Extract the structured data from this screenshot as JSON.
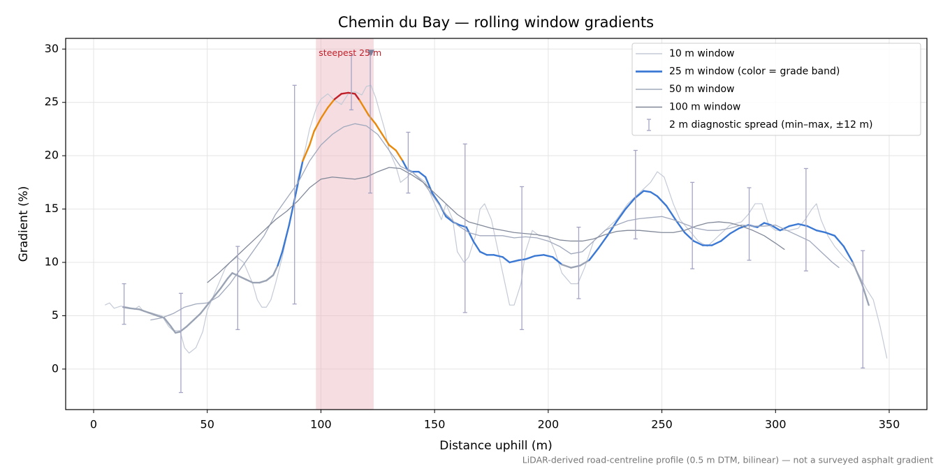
{
  "chart_data": {
    "type": "line",
    "title": "Chemin du Bay — rolling window gradients",
    "x_label": "Distance uphill (m)",
    "y_label": "Gradient (%)",
    "footnote": "LiDAR-derived road-centreline profile (0.5 m DTM, bilinear) — not a surveyed asphalt gradient",
    "xlim": [
      -12.3,
      366.6
    ],
    "ylim": [
      -3.8,
      31
    ],
    "xticks": [
      0,
      50,
      100,
      150,
      200,
      250,
      300,
      350
    ],
    "yticks": [
      0,
      5,
      10,
      15,
      20,
      25,
      30
    ],
    "grid": true,
    "legend": "upper right",
    "highlight": {
      "x": [
        97.8,
        123.2
      ],
      "color": "#e8b4bc"
    },
    "annotation": {
      "text": "steepest 25 m",
      "x": 122,
      "y": 29.6,
      "color": "#c0202a",
      "marker_color": "#7a7f9a"
    },
    "series": [
      {
        "name": "10 m window",
        "color": "#c3cad6",
        "width": 1.2,
        "x": [
          5,
          7,
          9,
          12,
          15,
          18,
          20,
          22,
          25,
          28,
          30,
          33,
          35,
          38,
          40,
          42,
          45,
          48,
          50,
          53,
          56,
          58,
          60,
          63,
          66,
          68,
          70,
          72,
          74,
          76,
          78,
          80,
          83,
          86,
          88,
          90,
          93,
          95,
          98,
          100,
          103,
          106,
          109,
          112,
          115,
          118,
          120,
          122,
          124,
          126,
          128,
          130,
          133,
          135,
          138,
          140,
          143,
          146,
          150,
          153,
          155,
          158,
          160,
          163,
          165,
          168,
          170,
          172,
          175,
          178,
          180,
          183,
          185,
          188,
          190,
          193,
          196,
          200,
          203,
          206,
          210,
          213,
          216,
          220,
          225,
          230,
          235,
          240,
          245,
          248,
          251,
          255,
          258,
          262,
          266,
          270,
          275,
          280,
          285,
          288,
          291,
          294,
          297,
          300,
          303,
          306,
          310,
          313,
          316,
          318,
          320,
          323,
          326,
          330,
          335,
          340,
          343,
          346,
          349
        ],
        "values": [
          6.0,
          6.2,
          5.7,
          5.9,
          5.8,
          5.6,
          5.9,
          5.4,
          5.3,
          5.1,
          5.0,
          4.0,
          3.6,
          3.6,
          2.0,
          1.5,
          2.0,
          3.5,
          5.5,
          7.0,
          8.5,
          9.5,
          10.0,
          10.5,
          10.0,
          9.0,
          8.0,
          6.5,
          5.8,
          5.8,
          6.5,
          8.0,
          10.5,
          13.5,
          15.5,
          18.0,
          20.5,
          22.5,
          24.5,
          25.3,
          25.8,
          25.2,
          24.8,
          25.8,
          26.0,
          25.7,
          26.5,
          26.6,
          25.5,
          24.0,
          22.5,
          20.5,
          19.0,
          17.5,
          18.0,
          18.5,
          18.0,
          17.5,
          15.5,
          14.0,
          15.5,
          14.0,
          11.0,
          10.0,
          10.5,
          12.5,
          15.0,
          15.5,
          14.0,
          11.0,
          9.0,
          6.0,
          6.0,
          8.0,
          11.0,
          13.0,
          12.5,
          12.5,
          11.0,
          9.0,
          8.0,
          8.0,
          9.5,
          12.0,
          13.0,
          14.0,
          15.5,
          16.5,
          17.5,
          18.5,
          18.0,
          15.5,
          14.0,
          13.0,
          12.0,
          11.5,
          12.5,
          13.5,
          13.8,
          14.5,
          15.5,
          15.5,
          13.5,
          13.0,
          13.0,
          13.0,
          13.2,
          14.0,
          15.0,
          15.5,
          14.0,
          12.5,
          11.5,
          10.5,
          9.5,
          7.5,
          6.5,
          4.0,
          1.0
        ]
      },
      {
        "name": "25 m window (color = grade band)",
        "color": "#3a78d4",
        "width": 2.4,
        "grade_bands": {
          "thresholds": [
            10,
            20,
            25
          ],
          "colors": [
            "#9aa3b4",
            "#3a78d4",
            "#e8890c",
            "#c0202a"
          ]
        },
        "x": [
          13,
          16,
          20,
          24,
          28,
          31,
          34,
          36,
          38,
          41,
          44,
          47,
          50,
          53,
          56,
          59,
          61,
          64,
          67,
          70,
          73,
          76,
          79,
          81,
          83,
          86,
          89,
          92,
          95,
          97,
          100,
          103,
          106,
          109,
          112,
          115,
          117,
          119,
          121,
          124,
          127,
          130,
          133,
          136,
          138,
          140,
          143,
          146,
          149,
          152,
          155,
          158,
          161,
          164,
          167,
          170,
          173,
          176,
          180,
          183,
          187,
          190,
          194,
          198,
          202,
          206,
          210,
          214,
          218,
          222,
          226,
          230,
          234,
          238,
          242,
          245,
          248,
          252,
          256,
          260,
          264,
          268,
          272,
          276,
          280,
          284,
          288,
          292,
          295,
          298,
          302,
          306,
          310,
          314,
          318,
          322,
          326,
          330,
          334,
          338,
          341
        ],
        "values": [
          5.8,
          5.7,
          5.6,
          5.3,
          5.0,
          4.8,
          4.0,
          3.4,
          3.5,
          4.0,
          4.6,
          5.2,
          6.0,
          6.8,
          7.6,
          8.5,
          9.0,
          8.7,
          8.4,
          8.1,
          8.1,
          8.3,
          8.8,
          9.7,
          11.0,
          13.5,
          16.5,
          19.5,
          21.0,
          22.3,
          23.5,
          24.5,
          25.3,
          25.8,
          25.9,
          25.8,
          25.2,
          24.5,
          23.8,
          23.0,
          22.0,
          21.0,
          20.5,
          19.5,
          18.7,
          18.5,
          18.5,
          18.0,
          16.5,
          15.5,
          14.3,
          13.8,
          13.5,
          13.3,
          12.0,
          11.0,
          10.7,
          10.7,
          10.5,
          10.0,
          10.2,
          10.3,
          10.6,
          10.7,
          10.5,
          9.8,
          9.5,
          9.7,
          10.2,
          11.3,
          12.5,
          13.8,
          15.0,
          16.0,
          16.7,
          16.6,
          16.2,
          15.3,
          14.0,
          12.8,
          12.0,
          11.6,
          11.6,
          12.0,
          12.7,
          13.2,
          13.5,
          13.3,
          13.7,
          13.5,
          13.0,
          13.4,
          13.6,
          13.4,
          13.0,
          12.8,
          12.5,
          11.5,
          10.0,
          8.0,
          6.0
        ]
      },
      {
        "name": "50 m window",
        "color": "#a0a8bc",
        "width": 1.3,
        "x": [
          25,
          30,
          35,
          40,
          45,
          50,
          55,
          60,
          65,
          70,
          75,
          80,
          85,
          90,
          95,
          100,
          105,
          110,
          115,
          120,
          125,
          130,
          135,
          140,
          145,
          150,
          155,
          160,
          165,
          170,
          175,
          180,
          185,
          190,
          195,
          200,
          205,
          210,
          215,
          220,
          225,
          230,
          235,
          240,
          245,
          250,
          255,
          260,
          265,
          270,
          275,
          280,
          285,
          290,
          295,
          300,
          305,
          310,
          315,
          320,
          325,
          328
        ],
        "values": [
          4.6,
          4.8,
          5.2,
          5.8,
          6.1,
          6.2,
          6.8,
          8.0,
          9.5,
          11.0,
          12.5,
          14.5,
          16.0,
          17.5,
          19.5,
          21.0,
          22.0,
          22.7,
          23.0,
          22.8,
          22.0,
          20.5,
          19.0,
          18.5,
          17.5,
          16.0,
          14.5,
          13.5,
          12.8,
          12.5,
          12.5,
          12.5,
          12.3,
          12.4,
          12.3,
          12.0,
          11.5,
          10.8,
          11.0,
          12.0,
          13.0,
          13.5,
          13.9,
          14.1,
          14.2,
          14.3,
          14.0,
          13.6,
          13.2,
          13.0,
          13.0,
          13.2,
          13.5,
          13.4,
          13.4,
          13.5,
          13.0,
          12.5,
          12.0,
          11.0,
          10.0,
          9.5
        ]
      },
      {
        "name": "100 m window",
        "color": "#808898",
        "width": 1.3,
        "x": [
          50,
          55,
          60,
          65,
          70,
          75,
          80,
          85,
          90,
          95,
          100,
          105,
          110,
          115,
          120,
          125,
          130,
          135,
          140,
          145,
          150,
          155,
          160,
          165,
          170,
          175,
          180,
          185,
          190,
          195,
          200,
          205,
          210,
          215,
          220,
          225,
          230,
          235,
          240,
          245,
          250,
          255,
          260,
          265,
          270,
          275,
          280,
          285,
          290,
          295,
          300,
          304
        ],
        "values": [
          8.1,
          9.0,
          10.0,
          11.0,
          12.0,
          13.0,
          14.0,
          14.8,
          15.8,
          17.0,
          17.8,
          18.0,
          17.9,
          17.8,
          18.0,
          18.5,
          18.9,
          18.8,
          18.2,
          17.5,
          16.5,
          15.5,
          14.5,
          13.8,
          13.5,
          13.2,
          13.0,
          12.8,
          12.7,
          12.6,
          12.4,
          12.1,
          12.0,
          12.0,
          12.2,
          12.6,
          12.9,
          13.0,
          13.0,
          12.9,
          12.8,
          12.8,
          13.0,
          13.4,
          13.7,
          13.8,
          13.7,
          13.4,
          13.0,
          12.5,
          11.8,
          11.2
        ]
      }
    ],
    "errorbars": {
      "name": "2 m diagnostic spread (min–max, ±12 m)",
      "color": "#a4a4c4",
      "x": [
        13.4,
        38.4,
        63.4,
        88.4,
        113.4,
        121.7,
        138.4,
        163.4,
        188.4,
        213.4,
        238.4,
        263.4,
        288.4,
        313.4,
        338.4
      ],
      "low": [
        4.2,
        -2.2,
        3.7,
        6.1,
        24.3,
        16.5,
        16.5,
        5.3,
        3.7,
        6.6,
        12.2,
        9.4,
        10.2,
        9.2,
        0.1
      ],
      "high": [
        8.0,
        7.1,
        11.5,
        26.6,
        29.4,
        29.5,
        22.2,
        21.1,
        17.1,
        13.3,
        20.5,
        17.5,
        17.0,
        18.8,
        11.1
      ]
    }
  }
}
